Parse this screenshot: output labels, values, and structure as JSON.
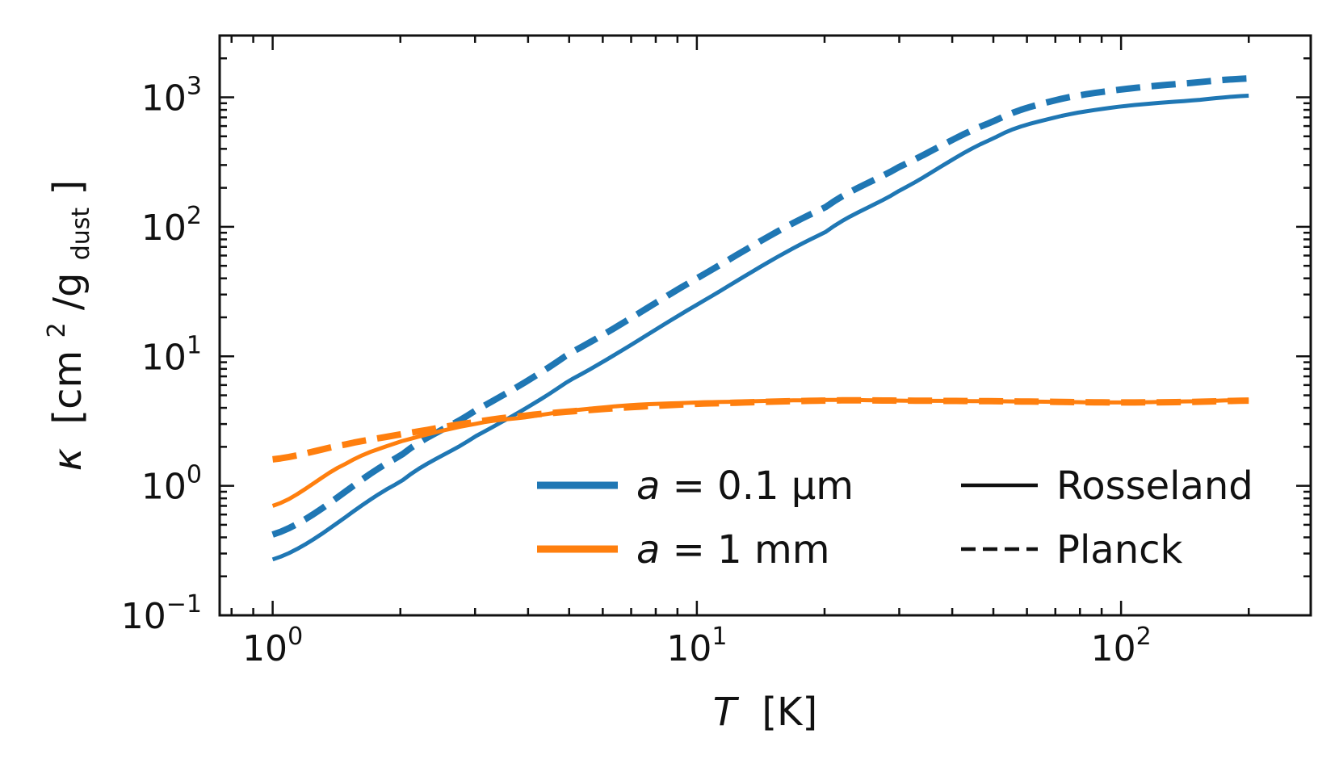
{
  "chart_data": {
    "type": "line",
    "x_scale": "log",
    "y_scale": "log",
    "xlim": [
      0.75,
      280
    ],
    "ylim": [
      0.1,
      3000
    ],
    "xlabel": "T [K]",
    "xlabel_italic": "T",
    "xlabel_unit": "[K]",
    "ylabel": "κ [cm²/g_dust]",
    "ylabel_parts": {
      "symbol": "κ",
      "unit_open": "[cm",
      "sup": "2",
      "mid": "/g",
      "sub": "dust",
      "unit_close": "]"
    },
    "x_ticks": [
      {
        "base": "10",
        "exp": "0",
        "value": 1
      },
      {
        "base": "10",
        "exp": "1",
        "value": 10
      },
      {
        "base": "10",
        "exp": "2",
        "value": 100
      }
    ],
    "y_ticks": [
      {
        "base": "10",
        "exp": "−1",
        "value": 0.1
      },
      {
        "base": "10",
        "exp": "0",
        "value": 1
      },
      {
        "base": "10",
        "exp": "1",
        "value": 10
      },
      {
        "base": "10",
        "exp": "2",
        "value": 100
      },
      {
        "base": "10",
        "exp": "3",
        "value": 1000
      }
    ],
    "grid": false,
    "legend_position": "lower-right",
    "colors": {
      "small_grain": "#1f77b4",
      "large_grain": "#ff7f0e",
      "axis": "#111111"
    },
    "series": [
      {
        "name": "a = 0.1 μm, Rosseland",
        "grain": "small_grain",
        "style": "solid",
        "x": [
          1,
          2,
          3,
          5,
          10,
          20,
          30,
          50,
          70,
          100,
          150,
          200
        ],
        "y": [
          0.27,
          1.07,
          2.4,
          6.5,
          25,
          90,
          190,
          480,
          700,
          850,
          950,
          1030
        ]
      },
      {
        "name": "a = 0.1 μm, Planck",
        "grain": "small_grain",
        "style": "dashed",
        "x": [
          1,
          2,
          3,
          5,
          10,
          20,
          30,
          50,
          70,
          100,
          150,
          200
        ],
        "y": [
          0.42,
          1.7,
          3.8,
          10.5,
          40,
          140,
          290,
          650,
          950,
          1150,
          1300,
          1400
        ]
      },
      {
        "name": "a = 1 mm, Rosseland",
        "grain": "large_grain",
        "style": "solid",
        "x": [
          1,
          1.5,
          2,
          3,
          4,
          5,
          7,
          10,
          20,
          30,
          50,
          70,
          100,
          150,
          200
        ],
        "y": [
          0.7,
          1.5,
          2.2,
          3.0,
          3.4,
          3.8,
          4.2,
          4.4,
          4.6,
          4.55,
          4.5,
          4.45,
          4.4,
          4.5,
          4.6
        ]
      },
      {
        "name": "a = 1 mm, Planck",
        "grain": "large_grain",
        "style": "dashed",
        "x": [
          1,
          1.5,
          2,
          3,
          4,
          5,
          7,
          10,
          20,
          30,
          50,
          70,
          100,
          150,
          200
        ],
        "y": [
          1.6,
          2.1,
          2.5,
          3.1,
          3.5,
          3.75,
          4.05,
          4.3,
          4.55,
          4.55,
          4.5,
          4.45,
          4.4,
          4.45,
          4.55
        ]
      }
    ],
    "legend": {
      "size_entries": [
        {
          "label_prefix": "a",
          "label_rest": " = 0.1 μm",
          "color": "#1f77b4"
        },
        {
          "label_prefix": "a",
          "label_rest": " = 1 mm",
          "color": "#ff7f0e"
        }
      ],
      "style_entries": [
        {
          "label": "Rosseland",
          "style": "solid"
        },
        {
          "label": "Planck",
          "style": "dashed"
        }
      ]
    }
  }
}
